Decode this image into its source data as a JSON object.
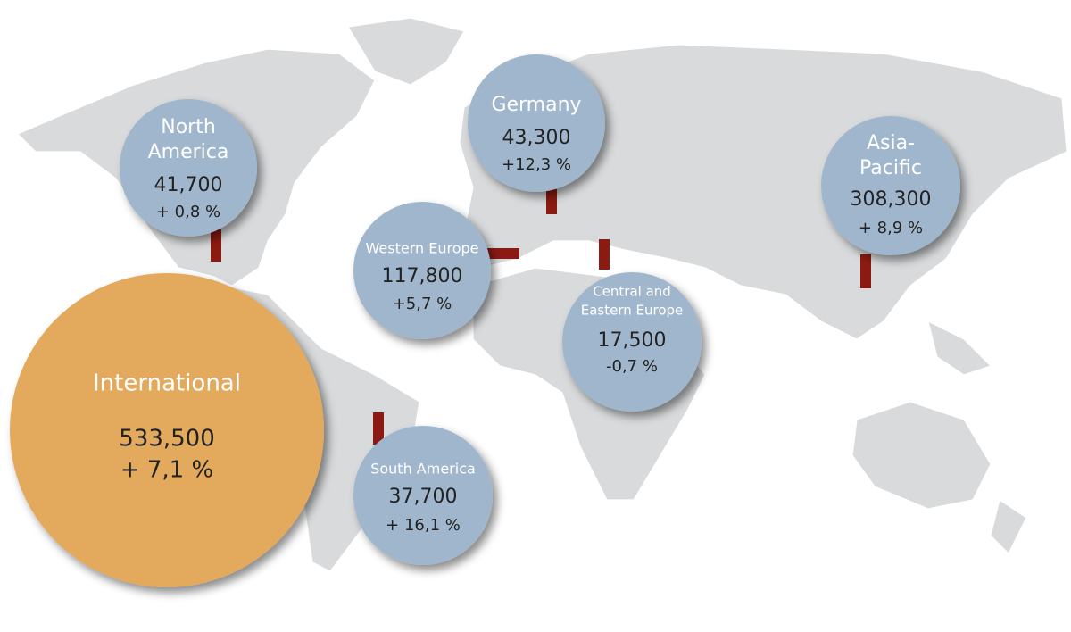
{
  "regions": [
    {
      "name": [
        "North",
        "America"
      ],
      "value": "41,700",
      "change": "+ 0,8 %"
    },
    {
      "name": [
        "Germany"
      ],
      "value": "43,300",
      "change": "+12,3 %"
    },
    {
      "name": [
        "Asia-",
        "Pacific"
      ],
      "value": "308,300",
      "change": "+ 8,9 %"
    },
    {
      "name": [
        "Western Europe"
      ],
      "value": "117,800",
      "change": "+5,7 %"
    },
    {
      "name": [
        "Central and",
        "Eastern Europe"
      ],
      "value": "17,500",
      "change": "-0,7 %"
    },
    {
      "name": [
        "South America"
      ],
      "value": "37,700",
      "change": "+ 16,1 %"
    },
    {
      "name": [
        "International"
      ],
      "value": "533,500",
      "change": "+ 7,1 %"
    }
  ]
}
